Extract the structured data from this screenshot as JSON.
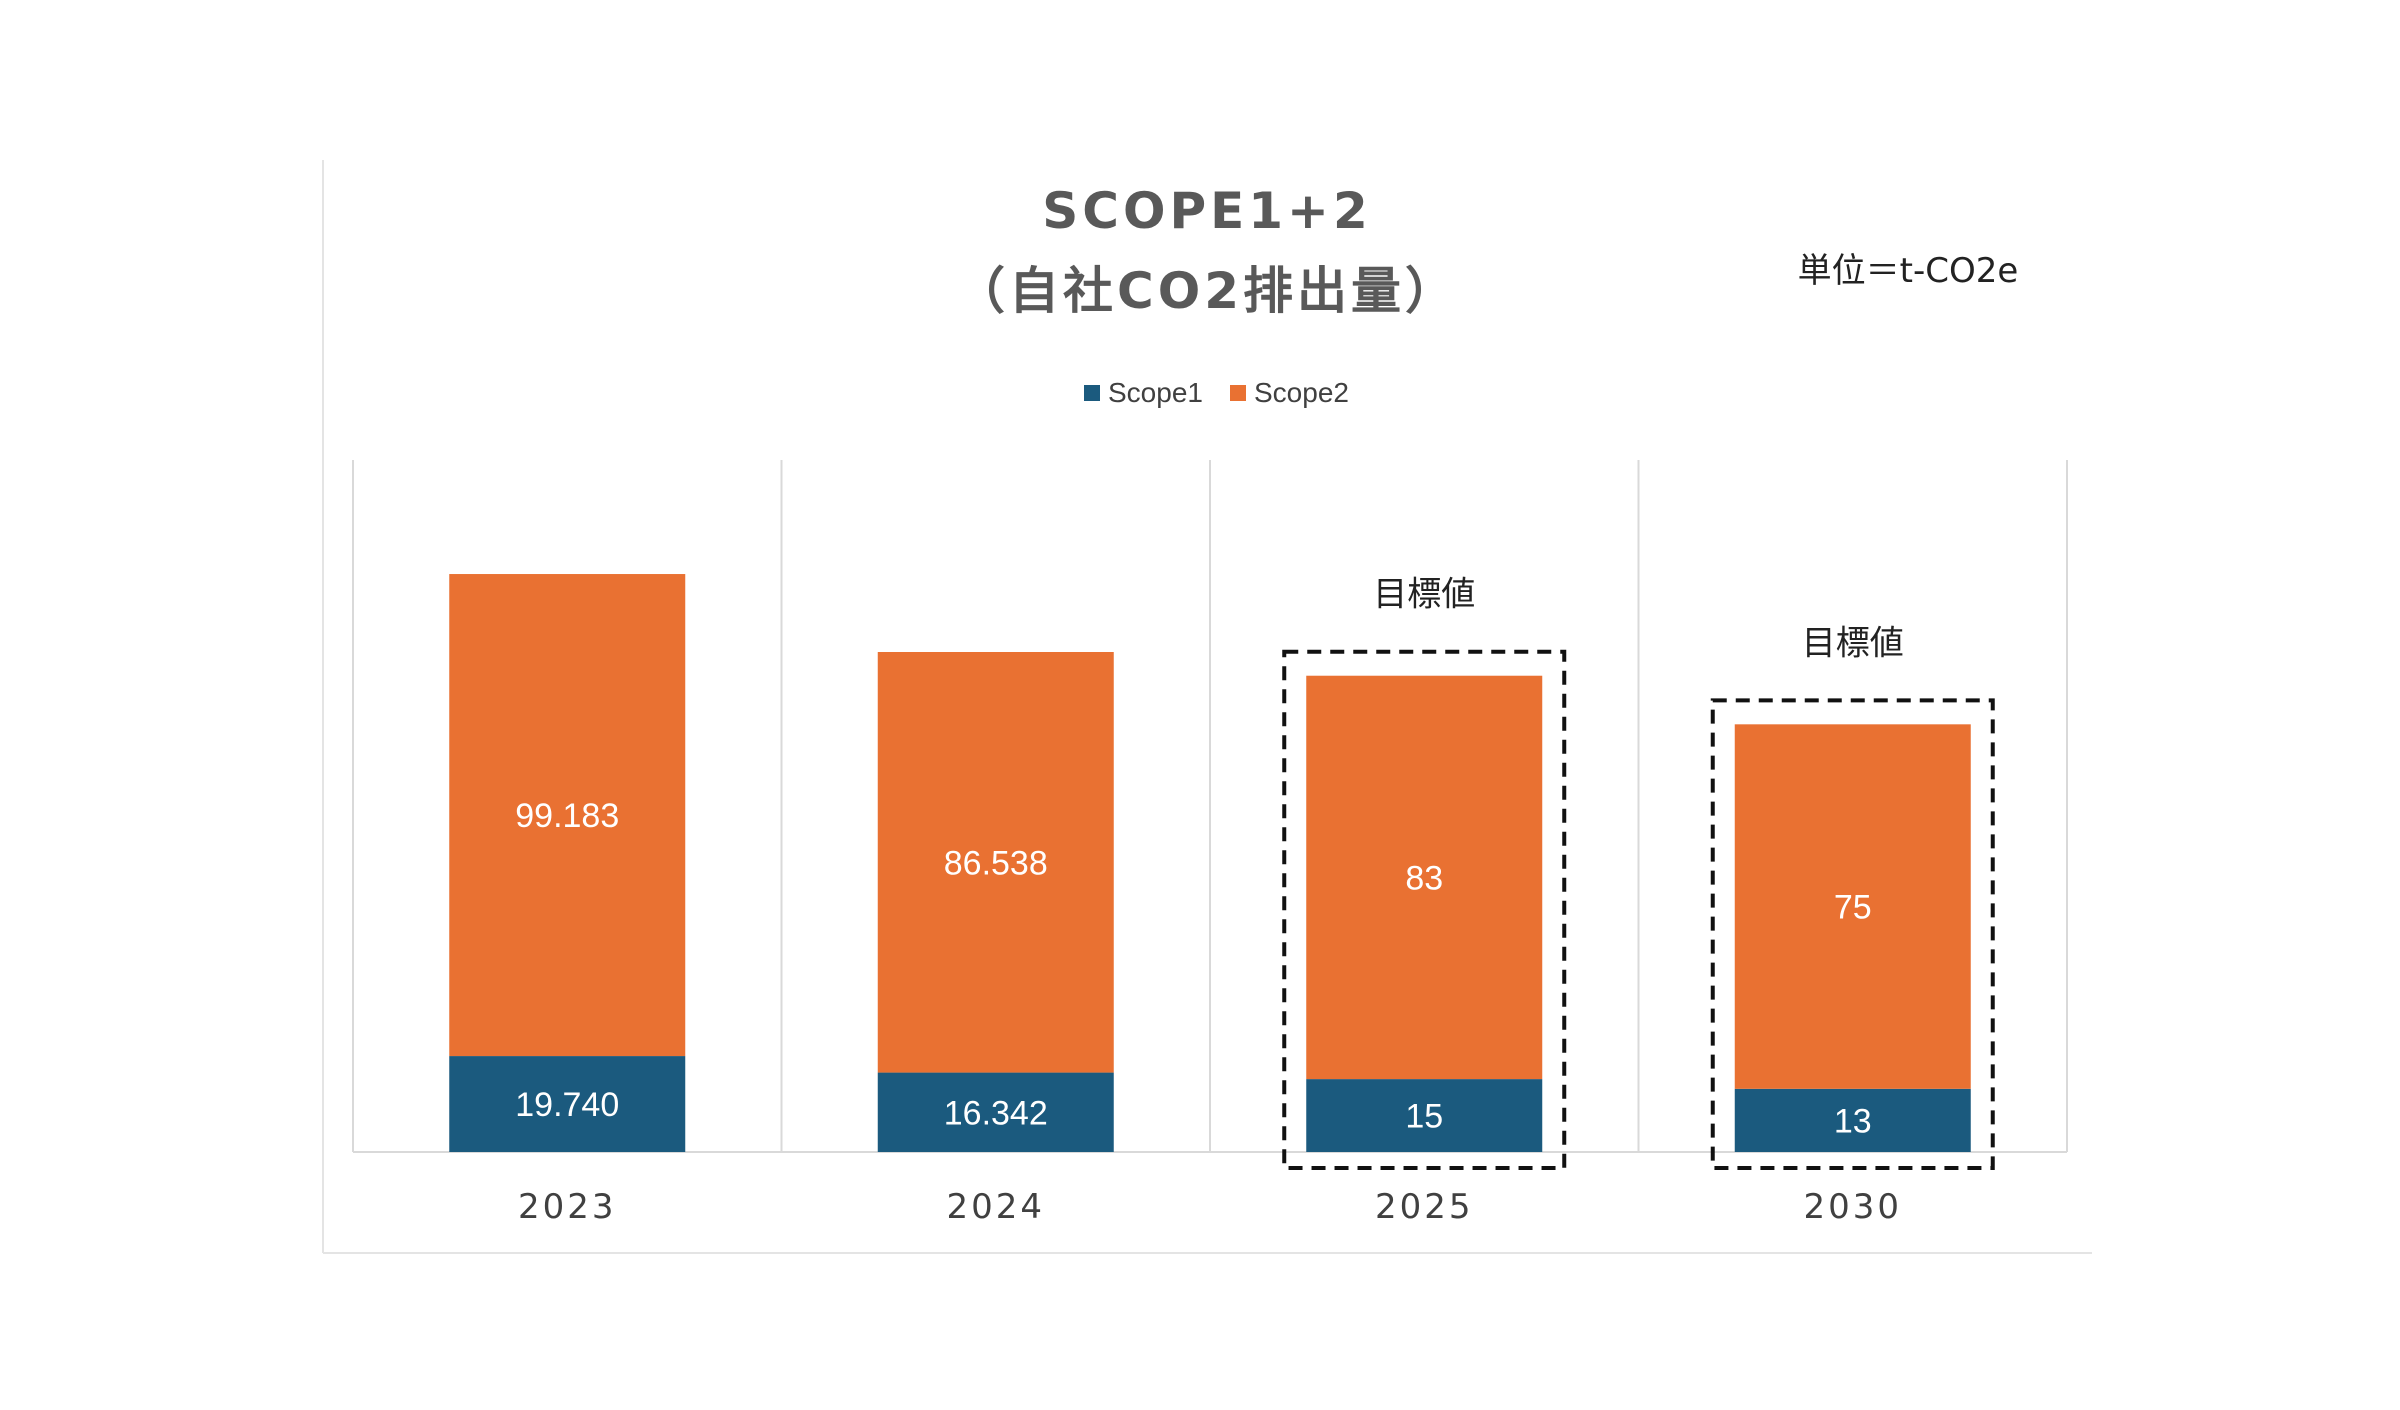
{
  "chart_data": {
    "type": "bar",
    "stacked": true,
    "title": "SCOPE1+2",
    "subtitle": "（自社CO2排出量）",
    "unit_label": "単位＝t-CO2e",
    "categories": [
      "2023",
      "2024",
      "2025",
      "2030"
    ],
    "series": [
      {
        "name": "Scope1",
        "values": [
          19.74,
          16.342,
          15,
          13
        ],
        "labels": [
          "19.740",
          "16.342",
          "15",
          "13"
        ],
        "color": "#1b5a7e"
      },
      {
        "name": "Scope2",
        "values": [
          99.183,
          86.538,
          83,
          75
        ],
        "labels": [
          "99.183",
          "86.538",
          "83",
          "75"
        ],
        "color": "#e97132"
      }
    ],
    "target_flags": [
      false,
      false,
      true,
      true
    ],
    "target_label": "目標値",
    "ylim": [
      0,
      130
    ],
    "grid": "vertical category separators",
    "legend": "top-center"
  }
}
